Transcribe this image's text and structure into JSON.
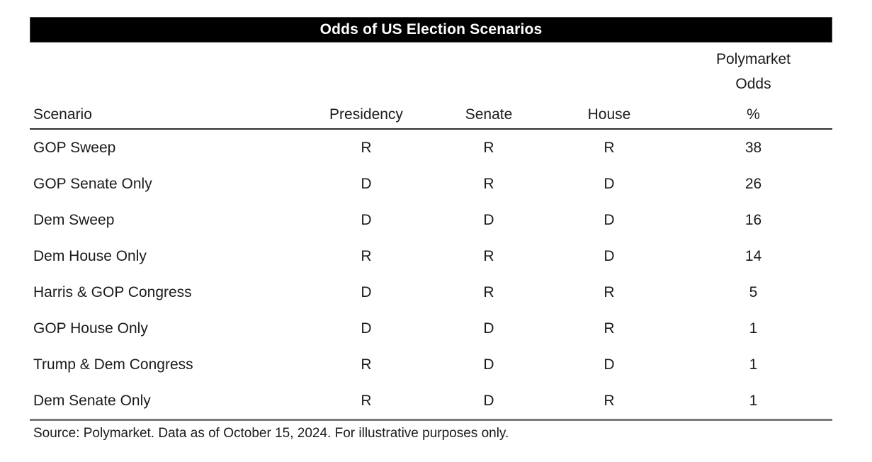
{
  "title": "Odds of US Election Scenarios",
  "table": {
    "odds_header_line1": "Polymarket",
    "odds_header_line2": "Odds",
    "columns": {
      "scenario": "Scenario",
      "presidency": "Presidency",
      "senate": "Senate",
      "house": "House",
      "odds_unit": "%"
    },
    "rows": [
      {
        "scenario": "GOP Sweep",
        "presidency": "R",
        "senate": "R",
        "house": "R",
        "odds": "38"
      },
      {
        "scenario": "GOP Senate Only",
        "presidency": "D",
        "senate": "R",
        "house": "D",
        "odds": "26"
      },
      {
        "scenario": "Dem Sweep",
        "presidency": "D",
        "senate": "D",
        "house": "D",
        "odds": "16"
      },
      {
        "scenario": "Dem House Only",
        "presidency": "R",
        "senate": "R",
        "house": "D",
        "odds": "14"
      },
      {
        "scenario": "Harris & GOP Congress",
        "presidency": "D",
        "senate": "R",
        "house": "R",
        "odds": "5"
      },
      {
        "scenario": "GOP House Only",
        "presidency": "D",
        "senate": "D",
        "house": "R",
        "odds": "1"
      },
      {
        "scenario": "Trump & Dem Congress",
        "presidency": "R",
        "senate": "D",
        "house": "D",
        "odds": "1"
      },
      {
        "scenario": "Dem Senate Only",
        "presidency": "R",
        "senate": "D",
        "house": "R",
        "odds": "1"
      }
    ]
  },
  "source": "Source: Polymarket. Data as of October 15, 2024. For illustrative purposes only.",
  "colors": {
    "title_bg": "#000000",
    "title_fg": "#ffffff",
    "text": "#1b1b1b",
    "header_rule": "#2e2e2e",
    "bottom_rule": "#7a7a7a"
  },
  "chart_data": {
    "type": "table",
    "title": "Odds of US Election Scenarios",
    "columns": [
      "Scenario",
      "Presidency",
      "Senate",
      "House",
      "Polymarket Odds %"
    ],
    "rows": [
      [
        "GOP Sweep",
        "R",
        "R",
        "R",
        38
      ],
      [
        "GOP Senate Only",
        "D",
        "R",
        "D",
        26
      ],
      [
        "Dem Sweep",
        "D",
        "D",
        "D",
        16
      ],
      [
        "Dem House Only",
        "R",
        "R",
        "D",
        14
      ],
      [
        "Harris & GOP Congress",
        "D",
        "R",
        "R",
        5
      ],
      [
        "GOP House Only",
        "D",
        "D",
        "R",
        1
      ],
      [
        "Trump & Dem Congress",
        "R",
        "D",
        "D",
        1
      ],
      [
        "Dem Senate Only",
        "R",
        "D",
        "R",
        1
      ]
    ],
    "source": "Source: Polymarket. Data as of October 15, 2024. For illustrative purposes only."
  }
}
